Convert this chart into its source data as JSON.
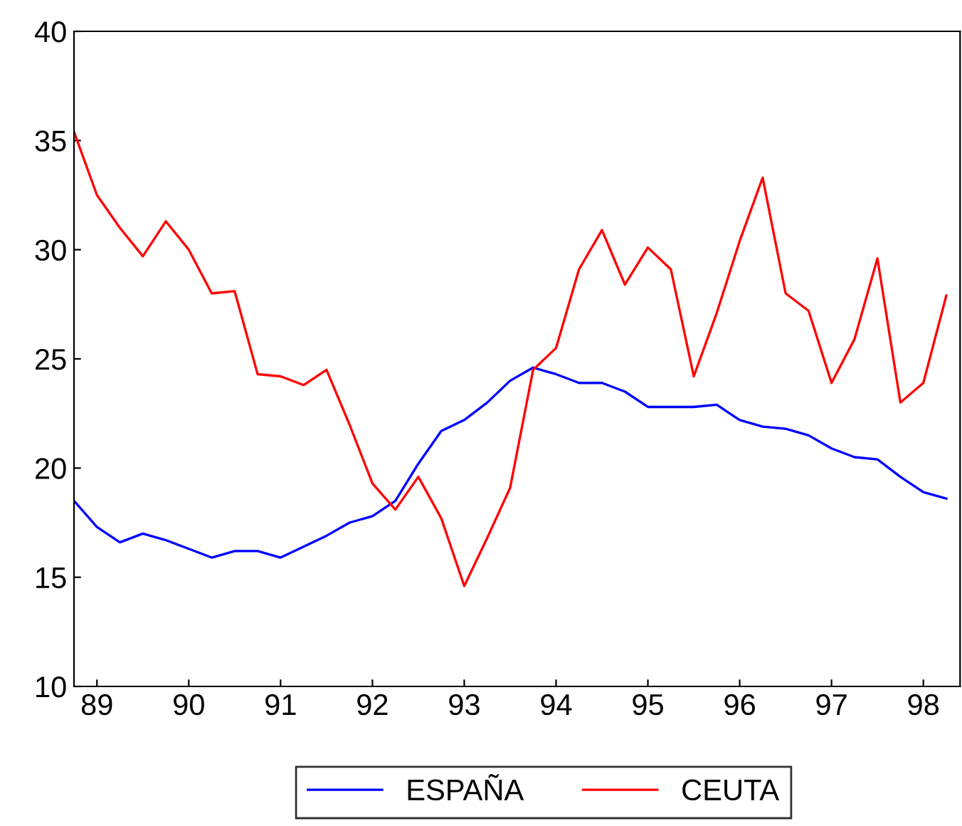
{
  "chart_data": {
    "type": "line",
    "x": [
      1988.75,
      1989.0,
      1989.25,
      1989.5,
      1989.75,
      1990.0,
      1990.25,
      1990.5,
      1990.75,
      1991.0,
      1991.25,
      1991.5,
      1991.75,
      1992.0,
      1992.25,
      1992.5,
      1992.75,
      1993.0,
      1993.25,
      1993.5,
      1993.75,
      1994.0,
      1994.25,
      1994.5,
      1994.75,
      1995.0,
      1995.25,
      1995.5,
      1995.75,
      1996.0,
      1996.25,
      1996.5,
      1996.75,
      1997.0,
      1997.25,
      1997.5,
      1997.75,
      1998.0,
      1998.25
    ],
    "series": [
      {
        "name": "ESPAÑA",
        "color": "#0000ff",
        "values": [
          18.5,
          17.3,
          16.6,
          17.0,
          16.7,
          16.3,
          15.9,
          16.2,
          16.2,
          15.9,
          16.4,
          16.9,
          17.5,
          17.8,
          18.5,
          20.2,
          21.7,
          22.2,
          23.0,
          24.0,
          24.6,
          24.3,
          23.9,
          23.9,
          23.5,
          22.8,
          22.8,
          22.8,
          22.9,
          22.2,
          21.9,
          21.8,
          21.5,
          20.9,
          20.5,
          20.4,
          19.6,
          18.9,
          18.6
        ]
      },
      {
        "name": "CEUTA",
        "color": "#ff0000",
        "values": [
          35.4,
          32.5,
          31.0,
          29.7,
          31.3,
          30.0,
          28.0,
          28.1,
          24.3,
          24.2,
          23.8,
          24.5,
          22.0,
          19.3,
          18.1,
          19.6,
          17.7,
          14.6,
          16.8,
          19.1,
          24.5,
          25.5,
          29.1,
          30.9,
          28.4,
          30.1,
          29.1,
          24.2,
          27.1,
          30.4,
          33.3,
          28.0,
          27.2,
          23.9,
          25.9,
          29.6,
          23.0,
          23.9,
          27.9
        ]
      }
    ],
    "xlim": [
      1988.75,
      1998.4
    ],
    "xticks": [
      {
        "value": 1989,
        "label": "89"
      },
      {
        "value": 1990,
        "label": "90"
      },
      {
        "value": 1991,
        "label": "91"
      },
      {
        "value": 1992,
        "label": "92"
      },
      {
        "value": 1993,
        "label": "93"
      },
      {
        "value": 1994,
        "label": "94"
      },
      {
        "value": 1995,
        "label": "95"
      },
      {
        "value": 1996,
        "label": "96"
      },
      {
        "value": 1997,
        "label": "97"
      },
      {
        "value": 1998,
        "label": "98"
      }
    ],
    "ylim": [
      10,
      40
    ],
    "yticks": [
      10,
      15,
      20,
      25,
      30,
      35,
      40
    ],
    "grid": false,
    "legend": "bottom",
    "marker": "none",
    "line_style": "solid"
  }
}
